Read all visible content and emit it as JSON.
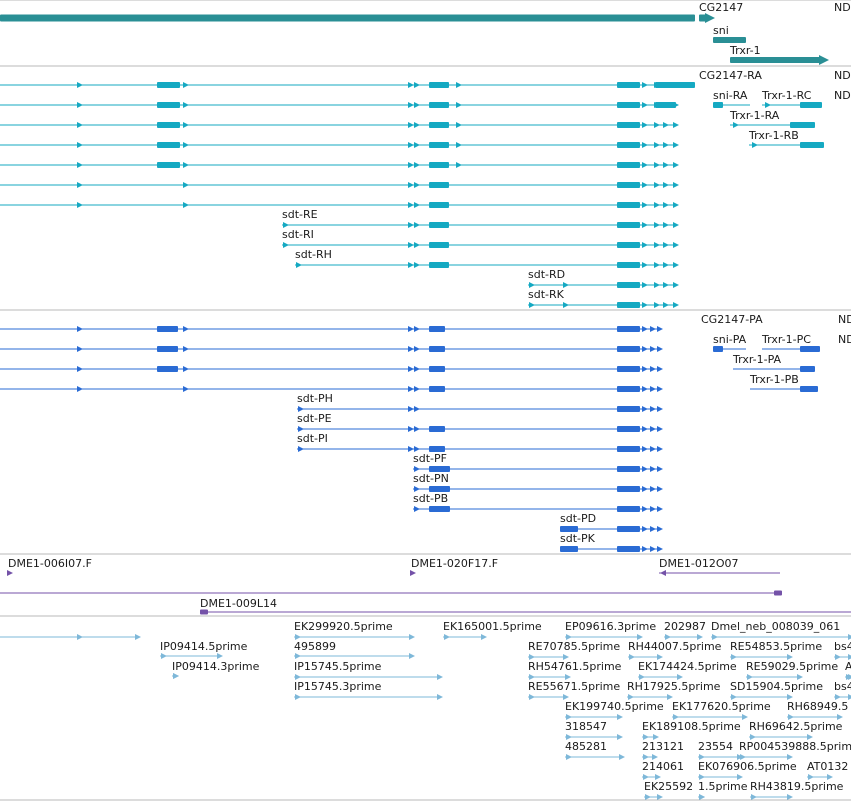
{
  "colors": {
    "gene": "#2a8f95",
    "rna": "#15a9c2",
    "protein": "#2a6bd4",
    "clone": "#7452a8",
    "est": "#7eb8d9",
    "divider": "#b8b8b8"
  },
  "labels": {
    "CG2147": "CG2147",
    "ND_1": "ND",
    "sni": "sni",
    "Trxr-1": "Trxr-1",
    "CG2147-RA": "CG2147-RA",
    "ND_2": "ND",
    "sni-RA": "sni-RA",
    "Trxr-1-RC": "Trxr-1-RC",
    "ND_3": "ND",
    "Trxr-1-RA": "Trxr-1-RA",
    "Trxr-1-RB": "Trxr-1-RB",
    "sdt-RE": "sdt-RE",
    "sdt-RI": "sdt-RI",
    "sdt-RH": "sdt-RH",
    "sdt-RD": "sdt-RD",
    "sdt-RK": "sdt-RK",
    "CG2147-PA": "CG2147-PA",
    "ND_4": "ND",
    "sni-PA": "sni-PA",
    "Trxr-1-PC": "Trxr-1-PC",
    "ND_5": "ND",
    "Trxr-1-PA": "Trxr-1-PA",
    "Trxr-1-PB": "Trxr-1-PB",
    "sdt-PH": "sdt-PH",
    "sdt-PE": "sdt-PE",
    "sdt-PI": "sdt-PI",
    "sdt-PF": "sdt-PF",
    "sdt-PN": "sdt-PN",
    "sdt-PB": "sdt-PB",
    "sdt-PD": "sdt-PD",
    "sdt-PK": "sdt-PK",
    "DME1-006I07.F": "DME1-006I07.F",
    "DME1-020F17.F": "DME1-020F17.F",
    "DME1-012O07": "DME1-012O07",
    "DME1-009L14": "DME1-009L14",
    "EK299920.5prime": "EK299920.5prime",
    "EK165001.5prime": "EK165001.5prime",
    "EP09616.3prime": "EP09616.3prime",
    "202987": "202987",
    "Dmel_neb_008039_061": "Dmel_neb_008039_061",
    "495899": "495899",
    "IP09414.5prime": "IP09414.5prime",
    "RE70785.5prime": "RE70785.5prime",
    "RH44007.5prime": "RH44007.5prime",
    "RE54853.5prime": "RE54853.5prime",
    "bs4_1": "bs4",
    "IP09414.3prime": "IP09414.3prime",
    "IP15745.5prime": "IP15745.5prime",
    "RH54761.5prime": "RH54761.5prime",
    "EK174424.5prime": "EK174424.5prime",
    "RE59029.5prime": "RE59029.5prime",
    "A_1": "A",
    "IP15745.3prime": "IP15745.3prime",
    "RE55671.5prime": "RE55671.5prime",
    "RH17925.5prime": "RH17925.5prime",
    "SD15904.5prime": "SD15904.5prime",
    "bs4_2": "bs4",
    "EK199740.5prime": "EK199740.5prime",
    "EK177620.5prime": "EK177620.5prime",
    "RH68949.5": "RH68949.5",
    "318547": "318547",
    "EK189108.5prime": "EK189108.5prime",
    "RH69642.5prime": "RH69642.5prime",
    "485281": "485281",
    "213121": "213121",
    "23554": "23554",
    "RP004539888.5prime": "RP004539888.5prime",
    "214061": "214061",
    "EK076906.5prime": "EK076906.5prime",
    "AT0132": "AT0132",
    "EK25592": "EK25592",
    "1.5prime": "1.5prime",
    "RH43819.5prime": "RH43819.5prime"
  }
}
